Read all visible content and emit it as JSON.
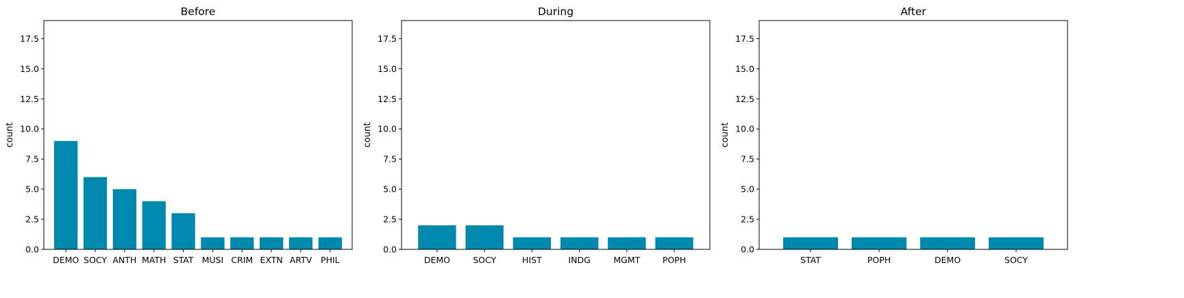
{
  "chart_data": [
    {
      "type": "bar",
      "title": "Before",
      "xlabel": "",
      "ylabel": "count",
      "ylim": [
        0,
        19
      ],
      "yticks": [
        "0.0",
        "2.5",
        "5.0",
        "7.5",
        "10.0",
        "12.5",
        "15.0",
        "17.5"
      ],
      "categories": [
        "DEMO",
        "SOCY",
        "ANTH",
        "MATH",
        "STAT",
        "MUSI",
        "CRIM",
        "EXTN",
        "ARTV",
        "PHIL"
      ],
      "values": [
        9,
        6,
        5,
        4,
        3,
        1,
        1,
        1,
        1,
        1
      ],
      "color": "#0087ae"
    },
    {
      "type": "bar",
      "title": "During",
      "xlabel": "",
      "ylabel": "count",
      "ylim": [
        0,
        19
      ],
      "yticks": [
        "0.0",
        "2.5",
        "5.0",
        "7.5",
        "10.0",
        "12.5",
        "15.0",
        "17.5"
      ],
      "categories": [
        "DEMO",
        "SOCY",
        "HIST",
        "INDG",
        "MGMT",
        "POPH"
      ],
      "values": [
        2,
        2,
        1,
        1,
        1,
        1
      ],
      "color": "#0087ae"
    },
    {
      "type": "bar",
      "title": "After",
      "xlabel": "",
      "ylabel": "count",
      "ylim": [
        0,
        19
      ],
      "yticks": [
        "0.0",
        "2.5",
        "5.0",
        "7.5",
        "10.0",
        "12.5",
        "15.0",
        "17.5"
      ],
      "categories": [
        "STAT",
        "POPH",
        "DEMO",
        "SOCY"
      ],
      "values": [
        1,
        1,
        1,
        1
      ],
      "color": "#0087ae"
    }
  ]
}
